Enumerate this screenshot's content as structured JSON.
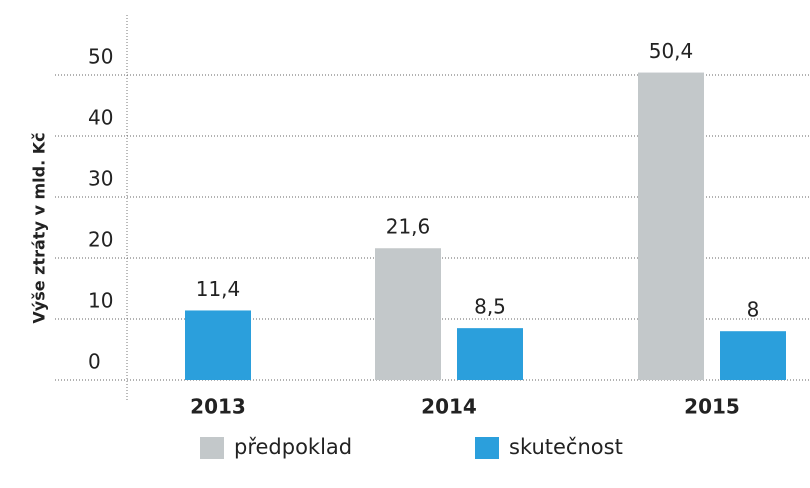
{
  "chart_data": {
    "type": "bar",
    "y_label": "Výše ztráty v mld. Kč",
    "categories": [
      "2013",
      "2014",
      "2015"
    ],
    "series": [
      {
        "name": "předpoklad",
        "color": "#c3c8ca",
        "values": [
          null,
          21.6,
          50.4
        ],
        "value_labels": [
          null,
          "21,6",
          "50,4"
        ]
      },
      {
        "name": "skutečnost",
        "color": "#2b9fdc",
        "values": [
          11.4,
          8.5,
          8
        ],
        "value_labels": [
          "11,4",
          "8,5",
          "8"
        ]
      }
    ],
    "ylim": [
      0,
      50
    ],
    "yticks": [
      0,
      10,
      20,
      30,
      40,
      50
    ],
    "grid": true
  }
}
